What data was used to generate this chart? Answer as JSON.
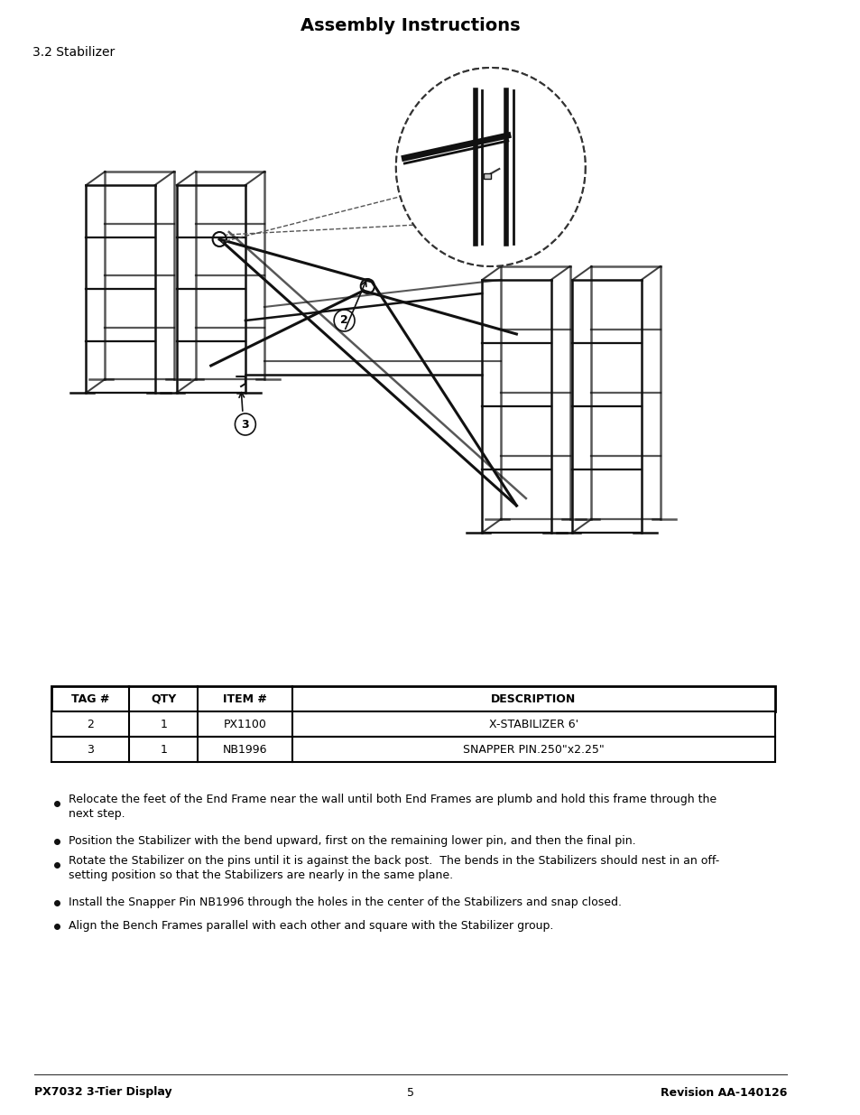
{
  "title": "Assembly Instructions",
  "subtitle": "3.2 Stabilizer",
  "table_headers": [
    "TAG #",
    "QTY",
    "ITEM #",
    "DESCRIPTION"
  ],
  "table_rows": [
    [
      "2",
      "1",
      "PX1100",
      "X-STABILIZER 6'"
    ],
    [
      "3",
      "1",
      "NB1996",
      "SNAPPER PIN.250\"x2.25\""
    ]
  ],
  "bullet_points": [
    "Relocate the feet of the End Frame near the wall until both End Frames are plumb and hold this frame through the\nnext step.",
    "Position the Stabilizer with the bend upward, first on the remaining lower pin, and then the final pin.",
    "Rotate the Stabilizer on the pins until it is against the back post.  The bends in the Stabilizers should nest in an off-\nsetting position so that the Stabilizers are nearly in the same plane.",
    "Install the Snapper Pin NB1996 through the holes in the center of the Stabilizers and snap closed.",
    "Align the Bench Frames parallel with each other and square with the Stabilizer group."
  ],
  "footer_left": "PX7032 3-Tier Display",
  "footer_center": "5",
  "footer_right": "Revision AA-140126",
  "bg_color": "#ffffff",
  "text_color": "#000000"
}
